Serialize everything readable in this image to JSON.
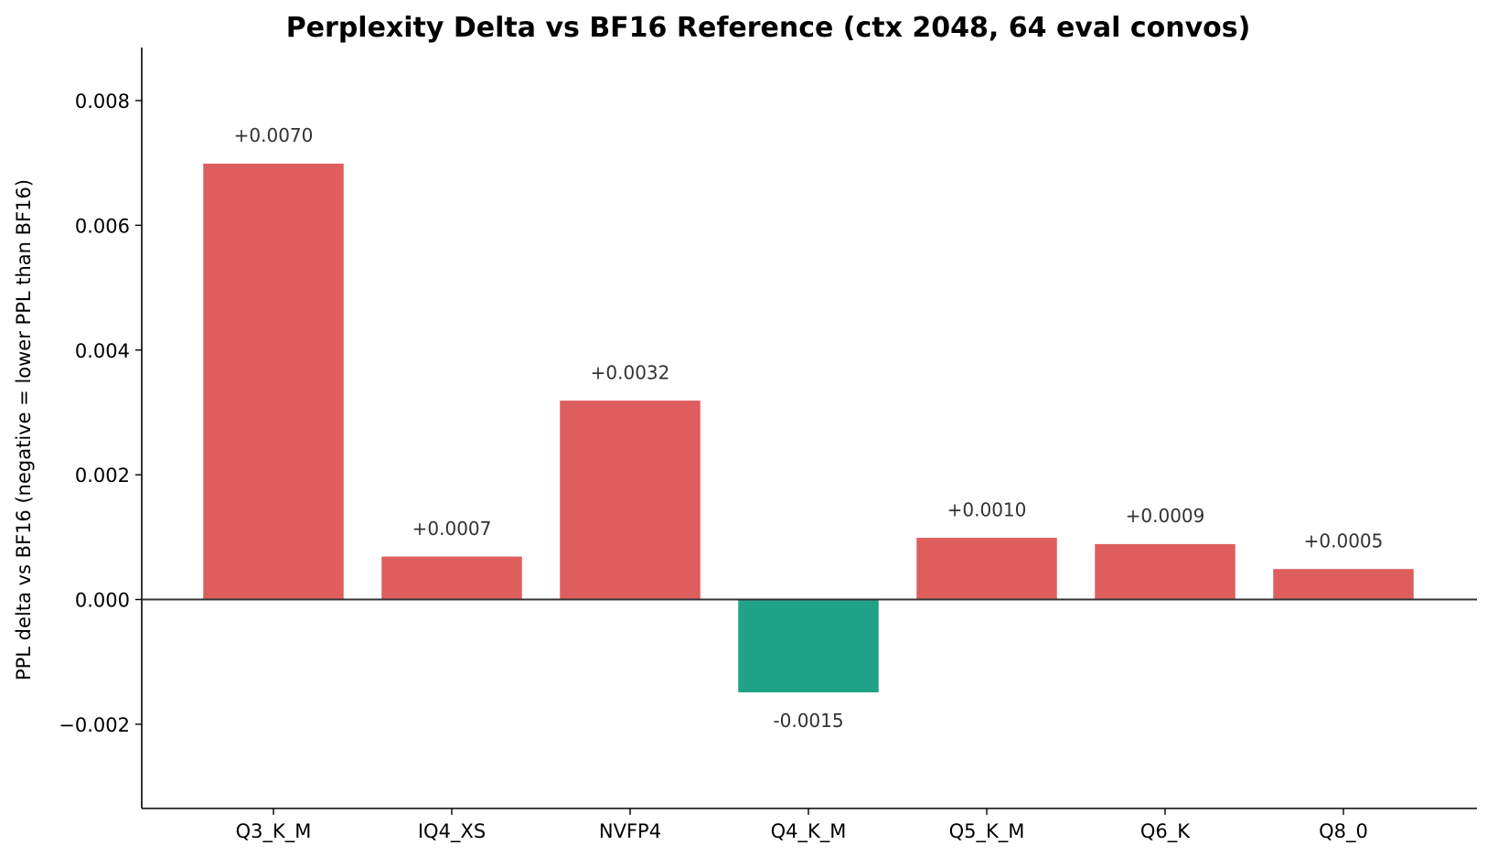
{
  "chart_data": {
    "type": "bar",
    "title": "Perplexity Delta vs BF16 Reference  (ctx 2048, 64 eval convos)",
    "xlabel": "",
    "ylabel": "PPL delta vs BF16  (negative = lower PPL than BF16)",
    "categories": [
      "Q3_K_M",
      "IQ4_XS",
      "NVFP4",
      "Q4_K_M",
      "Q5_K_M",
      "Q6_K",
      "Q8_0"
    ],
    "values": [
      0.007,
      0.0007,
      0.0032,
      -0.0015,
      0.001,
      0.0009,
      0.0005
    ],
    "value_labels": [
      "+0.0070",
      "+0.0007",
      "+0.0032",
      "-0.0015",
      "+0.0010",
      "+0.0009",
      "+0.0005"
    ],
    "ylim": [
      -0.00335,
      0.00885
    ],
    "yticks": [
      -0.002,
      0.0,
      0.002,
      0.004,
      0.006,
      0.008
    ],
    "ytick_labels": [
      "−0.002",
      "0.000",
      "0.002",
      "0.004",
      "0.006",
      "0.008"
    ],
    "colors": {
      "positive": "#de5e5e",
      "negative": "#20a288",
      "zero_line": "#333333",
      "axis": "#000000"
    },
    "grid": false,
    "legend": "none"
  }
}
